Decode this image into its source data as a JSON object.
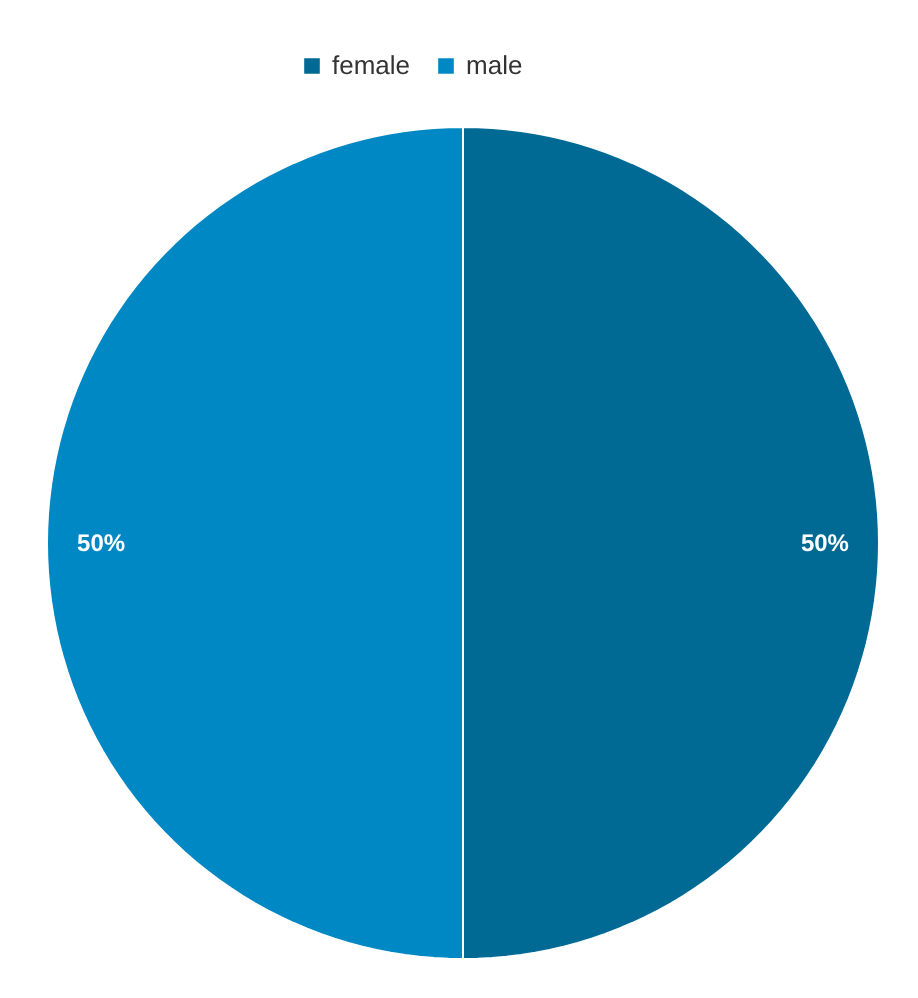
{
  "chart_data": {
    "type": "pie",
    "categories": [
      "female",
      "male"
    ],
    "values": [
      50,
      50
    ],
    "colors": [
      "#006a94",
      "#0088c4"
    ],
    "value_labels": [
      "50%",
      "50%"
    ],
    "legend": "top"
  }
}
